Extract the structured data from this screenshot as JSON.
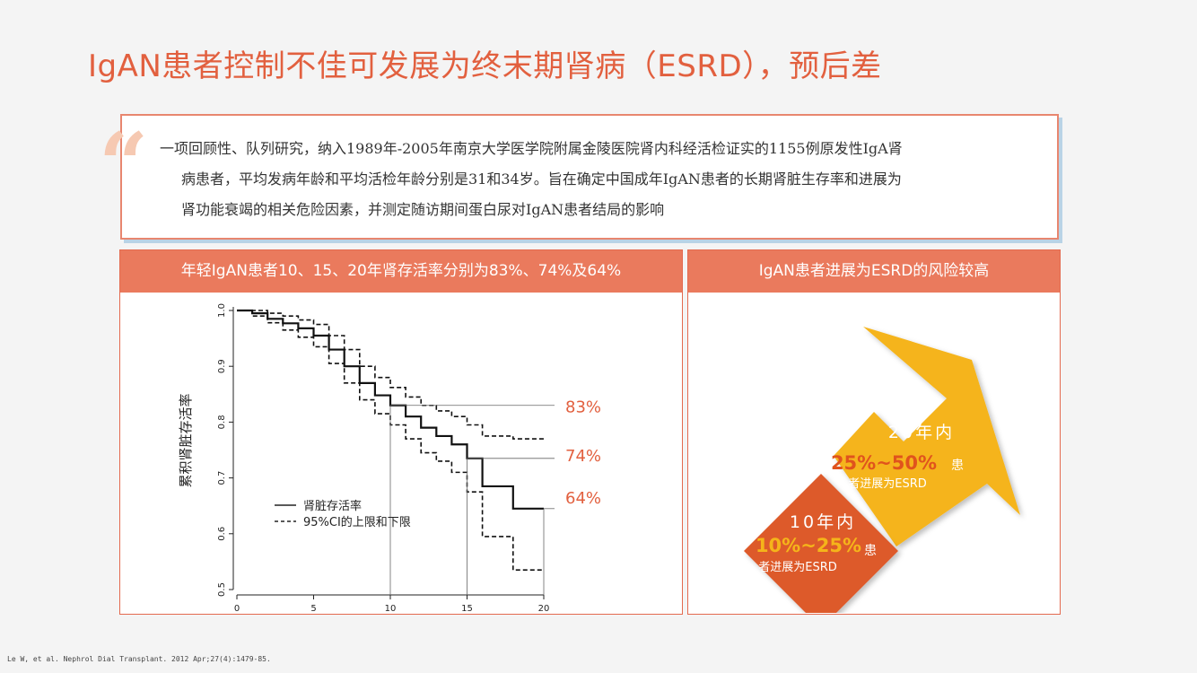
{
  "title": "IgAN患者控制不佳可发展为终末期肾病（ESRD），预后差",
  "quote": {
    "mark": "“",
    "line1": "一项回顾性、队列研究，纳入1989年-2005年南京大学医学院附属金陵医院肾内科经活检证实的1155例原发性IgA肾",
    "line2": "病患者，平均发病年龄和平均活检年龄分别是31和34岁。旨在确定中国成年IgAN患者的长期肾脏生存率和进展为",
    "line3": "肾功能衰竭的相关危险因素，并测定随访期间蛋白尿对IgAN患者结局的影响"
  },
  "left_panel": {
    "header": "年轻IgAN患者10、15、20年肾存活率分别为83%、74%及64%"
  },
  "right_panel": {
    "header": "IgAN患者进展为ESRD的风险较高",
    "arrow_top": {
      "years": "20年内",
      "range": "25%~50%",
      "suffix": "患",
      "desc": "者进展为ESRD"
    },
    "arrow_bottom": {
      "years": "10年内",
      "range": "10%~25%",
      "suffix": "患",
      "desc": "者进展为ESRD"
    }
  },
  "footnote": "Le W, et al. Nephrol Dial Transplant. 2012 Apr;27(4):1479-85.",
  "colors": {
    "accent": "#e2603f",
    "header_bg": "#ea7a5d",
    "arrow_yellow": "#f5b41a",
    "arrow_orange": "#dd5a2c"
  },
  "chart_data": {
    "type": "line",
    "ylabel": "累积肾脏存活率",
    "xlabel": "",
    "xlim": [
      0,
      20
    ],
    "ylim": [
      0.5,
      1.0
    ],
    "x_ticks": [
      "0",
      "5",
      "10",
      "15",
      "20"
    ],
    "y_ticks": [
      "0.5",
      "0.6",
      "0.7",
      "0.8",
      "0.9",
      "1.0"
    ],
    "legend": [
      "肾脏存活率",
      "95%CI的上限和下限"
    ],
    "legend_position": "bottom-left",
    "annotations": [
      {
        "x": 10,
        "y": 0.83,
        "label": "83%"
      },
      {
        "x": 15,
        "y": 0.735,
        "label": "74%"
      },
      {
        "x": 20,
        "y": 0.645,
        "label": "64%"
      }
    ],
    "series": [
      {
        "name": "肾脏存活率",
        "style": "solid",
        "x": [
          0,
          1,
          2,
          3,
          4,
          5,
          6,
          7,
          8,
          9,
          10,
          11,
          12,
          13,
          14,
          15,
          16,
          17,
          18,
          19,
          20
        ],
        "y": [
          1.0,
          0.995,
          0.985,
          0.977,
          0.968,
          0.955,
          0.93,
          0.9,
          0.87,
          0.848,
          0.83,
          0.81,
          0.79,
          0.775,
          0.76,
          0.735,
          0.685,
          0.685,
          0.645,
          0.645,
          0.645
        ]
      },
      {
        "name": "95%CI的上限和下限",
        "style": "dashed",
        "x": [
          0,
          1,
          2,
          3,
          4,
          5,
          6,
          7,
          8,
          9,
          10,
          11,
          12,
          13,
          14,
          15,
          16,
          17,
          18,
          19,
          20
        ],
        "y": [
          1.0,
          1.0,
          0.995,
          0.99,
          0.983,
          0.975,
          0.955,
          0.93,
          0.9,
          0.88,
          0.862,
          0.845,
          0.83,
          0.82,
          0.81,
          0.795,
          0.775,
          0.775,
          0.77,
          0.77,
          0.77
        ]
      },
      {
        "name": "",
        "style": "dashed",
        "x": [
          0,
          1,
          2,
          3,
          4,
          5,
          6,
          7,
          8,
          9,
          10,
          11,
          12,
          13,
          14,
          15,
          16,
          17,
          18,
          19,
          20
        ],
        "y": [
          1.0,
          0.99,
          0.978,
          0.965,
          0.952,
          0.935,
          0.905,
          0.87,
          0.84,
          0.815,
          0.795,
          0.77,
          0.745,
          0.73,
          0.71,
          0.675,
          0.595,
          0.595,
          0.535,
          0.535,
          0.535
        ]
      }
    ]
  }
}
